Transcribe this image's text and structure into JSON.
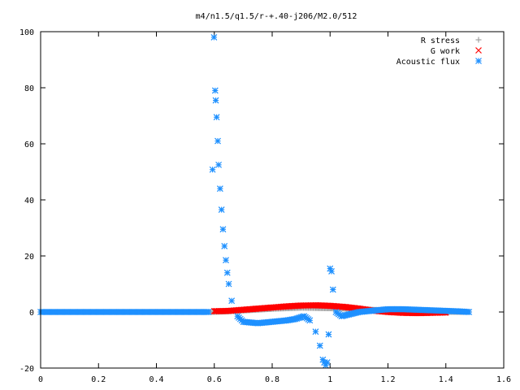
{
  "chart_data": {
    "type": "scatter",
    "title": "m4/n1.5/q1.5/r-+.40-j206/M2.0/512",
    "xlabel": "",
    "ylabel": "",
    "xlim": [
      0,
      1.6
    ],
    "ylim": [
      -20,
      100
    ],
    "xticks": [
      "0",
      "0.2",
      "0.4",
      "0.6",
      "0.8",
      "1",
      "1.2",
      "1.4",
      "1.6"
    ],
    "yticks": [
      "-20",
      "0",
      "20",
      "40",
      "60",
      "80",
      "100"
    ],
    "legend_position": "top-right",
    "grid": false,
    "series": [
      {
        "name": "R stress",
        "marker": "plus",
        "color": "#a0a0a0",
        "x": [
          0.0,
          0.1,
          0.2,
          0.3,
          0.4,
          0.5,
          0.6,
          0.62,
          0.65,
          0.7,
          0.75,
          0.8,
          0.85,
          0.9,
          0.95,
          1.0,
          1.05,
          1.1,
          1.15,
          1.2,
          1.25,
          1.3,
          1.35,
          1.4,
          1.45,
          1.48
        ],
        "y": [
          0.0,
          0.0,
          0.0,
          0.0,
          0.0,
          0.0,
          0.0,
          0.1,
          0.2,
          0.5,
          0.8,
          1.1,
          1.3,
          1.5,
          1.4,
          1.3,
          1.2,
          1.0,
          0.8,
          0.6,
          0.4,
          0.2,
          0.1,
          0.05,
          0.0,
          0.0
        ]
      },
      {
        "name": "G work",
        "marker": "cross",
        "color": "#ff0000",
        "x": [
          0.6,
          0.62,
          0.65,
          0.7,
          0.75,
          0.8,
          0.85,
          0.9,
          0.95,
          1.0,
          1.05,
          1.1,
          1.15,
          1.2,
          1.25,
          1.3,
          1.35,
          1.4
        ],
        "y": [
          0.3,
          0.3,
          0.4,
          0.8,
          1.2,
          1.6,
          2.0,
          2.3,
          2.4,
          2.2,
          1.8,
          1.2,
          0.5,
          0.0,
          -0.3,
          -0.4,
          -0.3,
          -0.2
        ]
      },
      {
        "name": "Acoustic flux",
        "marker": "star",
        "color": "#1e90ff",
        "x": [
          0.0,
          0.05,
          0.1,
          0.15,
          0.2,
          0.25,
          0.3,
          0.35,
          0.4,
          0.45,
          0.5,
          0.55,
          0.58,
          0.594,
          0.599,
          0.603,
          0.605,
          0.608,
          0.612,
          0.615,
          0.62,
          0.625,
          0.63,
          0.635,
          0.64,
          0.645,
          0.65,
          0.66,
          0.68,
          0.7,
          0.75,
          0.8,
          0.85,
          0.88,
          0.91,
          0.93,
          0.95,
          0.965,
          0.975,
          0.985,
          0.99,
          0.995,
          1.0,
          1.005,
          1.01,
          1.02,
          1.04,
          1.06,
          1.1,
          1.15,
          1.2,
          1.25,
          1.3,
          1.35,
          1.4,
          1.45,
          1.48
        ],
        "y": [
          0.0,
          0.0,
          0.0,
          0.0,
          0.0,
          0.0,
          0.0,
          0.0,
          0.0,
          0.0,
          0.0,
          0.0,
          0.0,
          50.8,
          98.0,
          79.0,
          75.5,
          69.5,
          61.0,
          52.5,
          44.0,
          36.5,
          29.5,
          23.5,
          18.5,
          14.0,
          10.0,
          4.0,
          -1.5,
          -3.5,
          -4.0,
          -3.5,
          -3.0,
          -2.5,
          -1.5,
          -3.0,
          -7.0,
          -12.0,
          -17.0,
          -19.0,
          -18.0,
          -8.0,
          15.5,
          14.5,
          8.0,
          0.0,
          -1.5,
          -1.0,
          0.0,
          0.5,
          1.0,
          1.0,
          0.8,
          0.6,
          0.4,
          0.2,
          0.0
        ]
      }
    ]
  }
}
